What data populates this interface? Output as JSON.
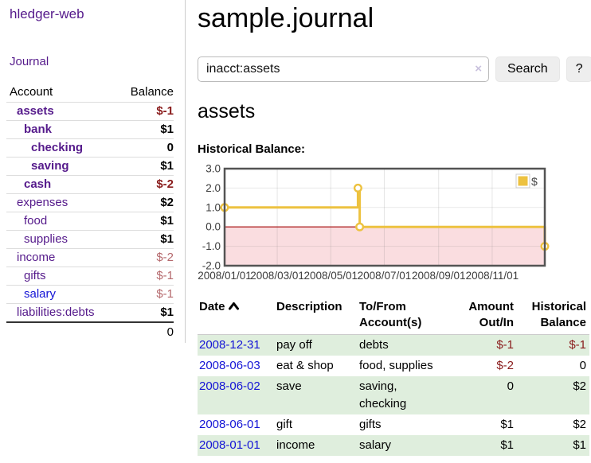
{
  "colors": {
    "link_purple": "#551a8b",
    "link_blue": "#1414d6",
    "negative_strong": "#891b1b",
    "negative_soft": "#b5696d",
    "row_shade_green": "#dfeedd",
    "series_gold": "#edc240"
  },
  "sidebar": {
    "brand": "hledger-web",
    "nav": {
      "journal": "Journal"
    },
    "accounts_table": {
      "headers": {
        "account": "Account",
        "balance": "Balance"
      },
      "rows": [
        {
          "name": "assets",
          "indent": 1,
          "bold": true,
          "balance": "$-1",
          "balance_class": "neg-strong"
        },
        {
          "name": "bank",
          "indent": 2,
          "bold": true,
          "balance": "$1",
          "balance_class": "pos"
        },
        {
          "name": "checking",
          "indent": 3,
          "bold": true,
          "balance": "0",
          "balance_class": "pos"
        },
        {
          "name": "saving",
          "indent": 3,
          "bold": true,
          "balance": "$1",
          "balance_class": "pos"
        },
        {
          "name": "cash",
          "indent": 2,
          "bold": true,
          "balance": "$-2",
          "balance_class": "neg-strong"
        },
        {
          "name": "expenses",
          "indent": 1,
          "bold": false,
          "balance": "$2",
          "balance_class": "pos"
        },
        {
          "name": "food",
          "indent": 2,
          "bold": false,
          "balance": "$1",
          "balance_class": "pos"
        },
        {
          "name": "supplies",
          "indent": 2,
          "bold": false,
          "balance": "$1",
          "balance_class": "pos"
        },
        {
          "name": "income",
          "indent": 1,
          "bold": false,
          "balance": "$-2",
          "balance_class": "neg-soft"
        },
        {
          "name": "gifts",
          "indent": 2,
          "bold": false,
          "balance": "$-1",
          "balance_class": "neg-soft"
        },
        {
          "name": "salary",
          "indent": 2,
          "bold": false,
          "blue": true,
          "balance": "$-1",
          "balance_class": "neg-soft"
        },
        {
          "name": "liabilities:debts",
          "indent": 1,
          "bold": false,
          "balance": "$1",
          "balance_class": "pos"
        }
      ],
      "total": "0"
    }
  },
  "main": {
    "title": "sample.journal",
    "search": {
      "value": "inacct:assets",
      "clear_icon": "×",
      "button": "Search",
      "help_button": "?"
    },
    "account_heading": "assets",
    "chart_label": "Historical Balance:",
    "register": {
      "headers": {
        "date": {
          "line1": "Date",
          "line2": ""
        },
        "description": {
          "line1": "Description",
          "line2": ""
        },
        "accounts": {
          "line1": "To/From",
          "line2": "Account(s)"
        },
        "amount": {
          "line1": "Amount",
          "line2": "Out/In"
        },
        "balance": {
          "line1": "Historical",
          "line2": "Balance"
        }
      },
      "rows": [
        {
          "date": "2008-12-31",
          "description": "pay off",
          "accounts": "debts",
          "amount": "$-1",
          "amount_class": "neg",
          "balance": "$-1",
          "balance_class": "neg"
        },
        {
          "date": "2008-06-03",
          "description": "eat & shop",
          "accounts": "food, supplies",
          "amount": "$-2",
          "amount_class": "neg",
          "balance": "0",
          "balance_class": "pos"
        },
        {
          "date": "2008-06-02",
          "description": "save",
          "accounts": "saving, checking",
          "amount": "0",
          "amount_class": "pos",
          "balance": "$2",
          "balance_class": "pos"
        },
        {
          "date": "2008-06-01",
          "description": "gift",
          "accounts": "gifts",
          "amount": "$1",
          "amount_class": "pos",
          "balance": "$2",
          "balance_class": "pos"
        },
        {
          "date": "2008-01-01",
          "description": "income",
          "accounts": "salary",
          "amount": "$1",
          "amount_class": "pos",
          "balance": "$1",
          "balance_class": "pos"
        }
      ]
    }
  },
  "chart_data": {
    "type": "line",
    "title": "Historical Balance",
    "step": true,
    "series": [
      {
        "name": "$",
        "color": "#edc240",
        "points": [
          [
            "2008-01-01",
            1
          ],
          [
            "2008-06-01",
            2
          ],
          [
            "2008-06-03",
            0
          ],
          [
            "2008-12-31",
            -1
          ]
        ]
      }
    ],
    "xrange": [
      "2008-01-01",
      "2008-12-31"
    ],
    "ylim": [
      -2,
      3
    ],
    "yticks": [
      "3.0",
      "2.0",
      "1.0",
      "0.0",
      "-1.0",
      "-2.0"
    ],
    "xticks": [
      "2008/01/01",
      "2008/03/01",
      "2008/05/01",
      "2008/07/01",
      "2008/09/01",
      "2008/11/01"
    ],
    "grid": true,
    "legend_position": "top-right",
    "zero_line_color": "#a40000",
    "negative_region_color": "#fadde0",
    "plot_border_color": "#545454"
  }
}
